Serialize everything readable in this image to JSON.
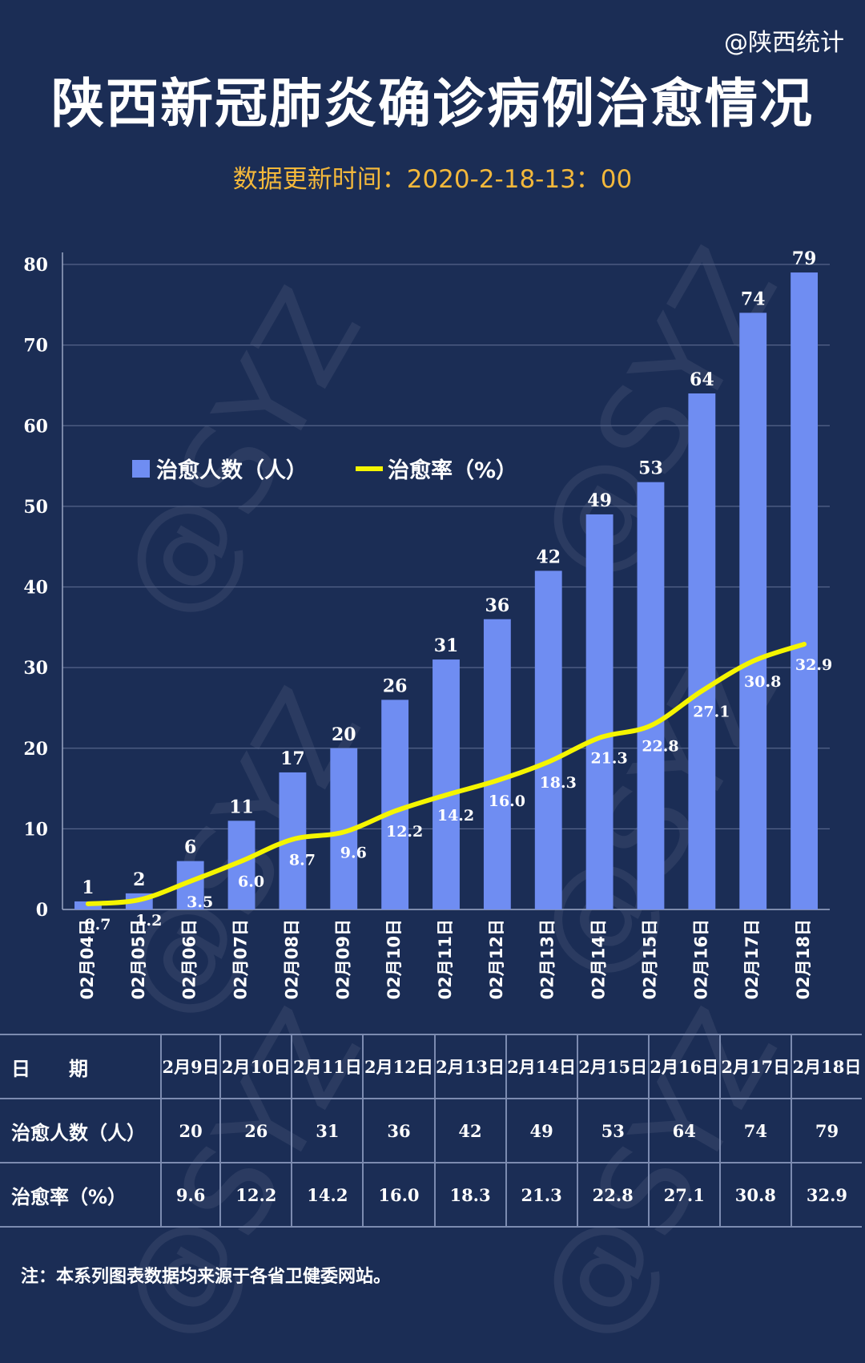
{
  "header": {
    "credit": "@陕西统计",
    "title": "陕西新冠肺炎确诊病例治愈情况",
    "subtitle": "数据更新时间：2020-2-18-13：00"
  },
  "watermark": "@SYZ",
  "legend": {
    "bar_label": "治愈人数（人）",
    "line_label": "治愈率（%）"
  },
  "chart_data": {
    "type": "bar",
    "categories": [
      "02月04日",
      "02月05日",
      "02月06日",
      "02月07日",
      "02月08日",
      "02月09日",
      "02月10日",
      "02月11日",
      "02月12日",
      "02月13日",
      "02月14日",
      "02月15日",
      "02月16日",
      "02月17日",
      "02月18日"
    ],
    "series": [
      {
        "name": "治愈人数（人）",
        "type": "bar",
        "color": "#6f8df2",
        "values": [
          1,
          2,
          6,
          11,
          17,
          20,
          26,
          31,
          36,
          42,
          49,
          53,
          64,
          74,
          79
        ]
      },
      {
        "name": "治愈率（%）",
        "type": "line",
        "color": "#f5f500",
        "values": [
          "0.7",
          "1.2",
          "3.5",
          "6.0",
          "8.7",
          "9.6",
          "12.2",
          "14.2",
          "16.0",
          "18.3",
          "21.3",
          "22.8",
          "27.1",
          "30.8",
          "32.9"
        ]
      }
    ],
    "yticks": [
      "0",
      "10",
      "20",
      "30",
      "40",
      "50",
      "60",
      "70",
      "80"
    ],
    "ylim": [
      0,
      80
    ],
    "grid": true,
    "legend_position": "top-left"
  },
  "table": {
    "header_label": "日　　期",
    "dates": [
      "2月9日",
      "2月10日",
      "2月11日",
      "2月12日",
      "2月13日",
      "2月14日",
      "2月15日",
      "2月16日",
      "2月17日",
      "2月18日"
    ],
    "rows": [
      {
        "label": "治愈人数（人）",
        "values": [
          "20",
          "26",
          "31",
          "36",
          "42",
          "49",
          "53",
          "64",
          "74",
          "79"
        ]
      },
      {
        "label": "治愈率（%）",
        "values": [
          "9.6",
          "12.2",
          "14.2",
          "16.0",
          "18.3",
          "21.3",
          "22.8",
          "27.1",
          "30.8",
          "32.9"
        ]
      }
    ]
  },
  "footer": {
    "note": "注：本系列图表数据均来源于各省卫健委网站。"
  }
}
